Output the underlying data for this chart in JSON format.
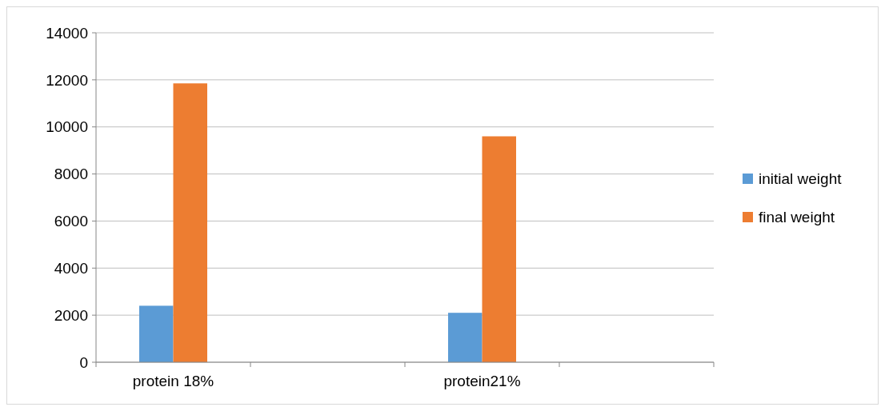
{
  "chart_data": {
    "type": "bar",
    "categories": [
      "protein 18%",
      null,
      "protein21%",
      null
    ],
    "series": [
      {
        "name": "initial weight",
        "color": "#5b9bd5",
        "values": [
          2400,
          null,
          2100,
          null
        ]
      },
      {
        "name": "final weight",
        "color": "#ed7d31",
        "values": [
          11850,
          null,
          9600,
          null
        ]
      }
    ],
    "ylim": [
      0,
      14000
    ],
    "yticks": [
      0,
      2000,
      4000,
      6000,
      8000,
      10000,
      12000,
      14000
    ],
    "grid": "y",
    "legend": "right"
  }
}
